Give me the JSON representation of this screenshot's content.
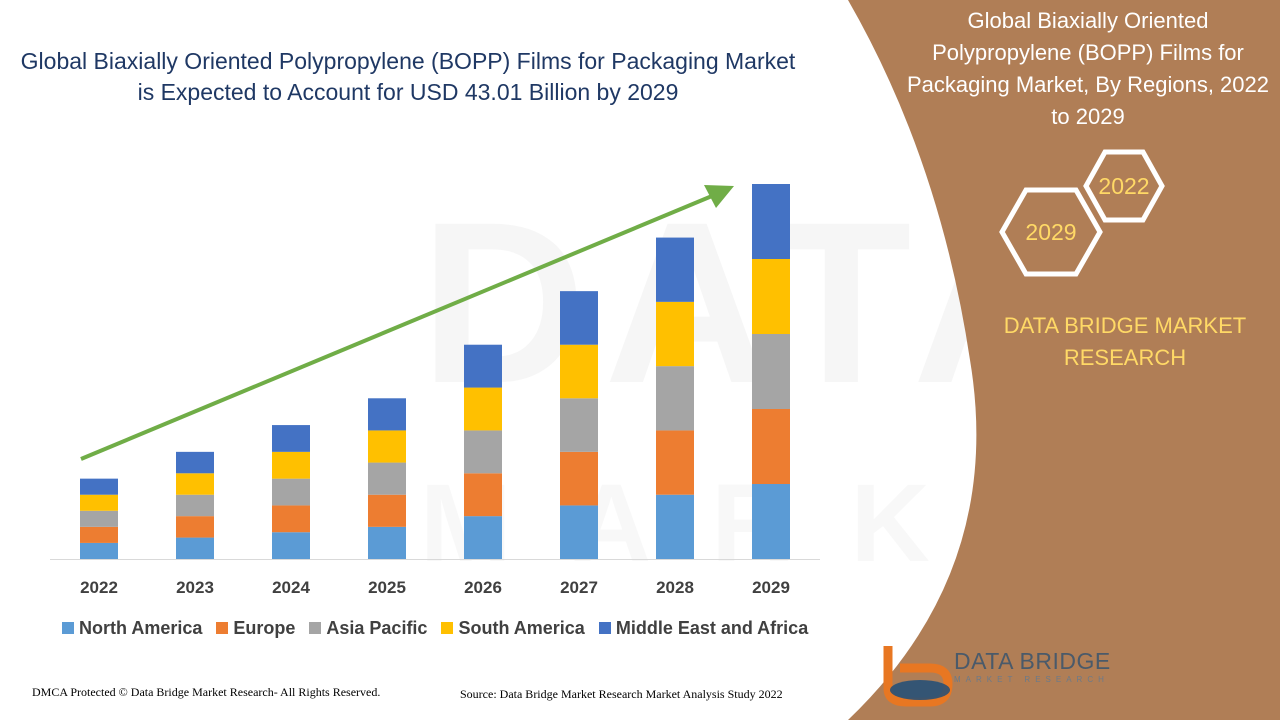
{
  "title": "Global Biaxially Oriented Polypropylene (BOPP) Films for Packaging Market is Expected to Account for USD 43.01 Billion by 2029",
  "side_panel": {
    "title": "Global Biaxially Oriented Polypropylene (BOPP) Films for Packaging Market, By Regions, 2022 to 2029",
    "hex_top": "2022",
    "hex_bottom": "2029",
    "brand_line1": "DATA BRIDGE MARKET",
    "brand_line2": "RESEARCH",
    "panel_color": "#b07e56",
    "accent_color": "#ffd966"
  },
  "watermark": {
    "line1": "DATA BRIDGE",
    "line2": "MARKET RESEARCH"
  },
  "chart_data": {
    "type": "bar",
    "stacked": true,
    "categories": [
      "2022",
      "2023",
      "2024",
      "2025",
      "2026",
      "2027",
      "2028",
      "2029"
    ],
    "series": [
      {
        "name": "North America",
        "color": "#5b9bd5",
        "values": [
          1.5,
          2.0,
          2.5,
          3.0,
          4.0,
          5.0,
          6.0,
          7.0
        ]
      },
      {
        "name": "Europe",
        "color": "#ed7d31",
        "values": [
          1.5,
          2.0,
          2.5,
          3.0,
          4.0,
          5.0,
          6.0,
          7.0
        ]
      },
      {
        "name": "Asia Pacific",
        "color": "#a5a5a5",
        "values": [
          1.5,
          2.0,
          2.5,
          3.0,
          4.0,
          5.0,
          6.0,
          7.0
        ]
      },
      {
        "name": "South America",
        "color": "#ffc000",
        "values": [
          1.5,
          2.0,
          2.5,
          3.0,
          4.0,
          5.0,
          6.0,
          7.0
        ]
      },
      {
        "name": "Middle East and Africa",
        "color": "#4472c4",
        "values": [
          1.5,
          2.0,
          2.5,
          3.0,
          4.0,
          5.0,
          6.0,
          7.0
        ]
      }
    ],
    "ylim": [
      0,
      35
    ],
    "y_axis_visible": false,
    "grid": false,
    "legend_position": "bottom",
    "trend_arrow_color": "#70ad47"
  },
  "footer": {
    "left": "DMCA Protected © Data Bridge Market Research- All Rights Reserved.",
    "right": "Source: Data Bridge Market Research Market Analysis Study 2022"
  },
  "logo": {
    "name": "DATA BRIDGE",
    "tagline": "MARKET RESEARCH"
  }
}
